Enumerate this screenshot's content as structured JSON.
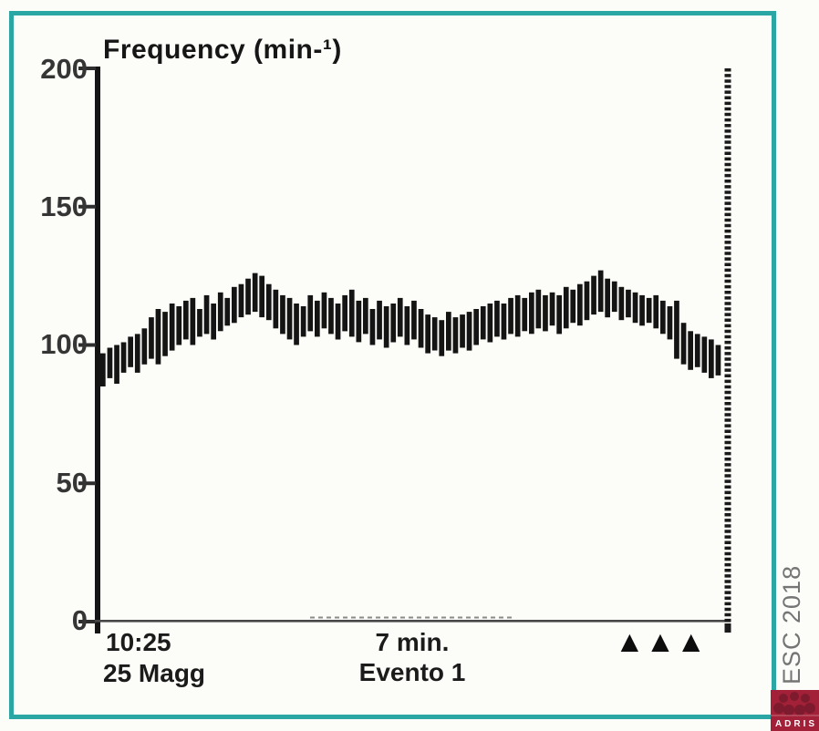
{
  "frame": {
    "border_color": "#2aa7a5",
    "background": "#fcfcf8"
  },
  "chart": {
    "title": "Frequency (min-¹)",
    "y_axis": {
      "ticks": [
        "200",
        "150",
        "100",
        "50",
        "0"
      ]
    },
    "x_axis": {
      "start_time": "10:25",
      "start_date": "25 Magg",
      "duration_label": "7 min.",
      "event_label": "Evento 1"
    },
    "markers": {
      "glyph": "▲",
      "count": 3
    }
  },
  "watermark": "ESC 2018",
  "logo": {
    "text": "ADRIS",
    "bg": "#a22138",
    "accent": "#7e1a2d"
  },
  "chart_data": {
    "type": "range-bar",
    "title": "Frequency (min-¹)",
    "ylabel": "Frequency (min-1)",
    "ylim": [
      0,
      200
    ],
    "y_ticks": [
      0,
      50,
      100,
      150,
      200
    ],
    "x_start": "10:25 25 Magg",
    "x_span_label": "7 min.",
    "event": "Evento 1",
    "event_markers": 3,
    "ink_color": "#141414",
    "axis_color": "#474747",
    "bars_lo_hi": [
      [
        85,
        97
      ],
      [
        88,
        99
      ],
      [
        86,
        100
      ],
      [
        90,
        101
      ],
      [
        92,
        103
      ],
      [
        90,
        104
      ],
      [
        93,
        106
      ],
      [
        95,
        110
      ],
      [
        93,
        113
      ],
      [
        96,
        112
      ],
      [
        98,
        115
      ],
      [
        100,
        114
      ],
      [
        102,
        116
      ],
      [
        100,
        117
      ],
      [
        103,
        113
      ],
      [
        104,
        118
      ],
      [
        102,
        115
      ],
      [
        105,
        119
      ],
      [
        107,
        117
      ],
      [
        108,
        121
      ],
      [
        110,
        122
      ],
      [
        111,
        124
      ],
      [
        112,
        126
      ],
      [
        110,
        125
      ],
      [
        109,
        122
      ],
      [
        106,
        120
      ],
      [
        104,
        118
      ],
      [
        102,
        117
      ],
      [
        100,
        115
      ],
      [
        103,
        114
      ],
      [
        105,
        118
      ],
      [
        103,
        116
      ],
      [
        106,
        119
      ],
      [
        104,
        117
      ],
      [
        102,
        115
      ],
      [
        105,
        118
      ],
      [
        103,
        120
      ],
      [
        101,
        116
      ],
      [
        104,
        117
      ],
      [
        100,
        113
      ],
      [
        102,
        116
      ],
      [
        99,
        114
      ],
      [
        101,
        115
      ],
      [
        103,
        117
      ],
      [
        100,
        114
      ],
      [
        102,
        116
      ],
      [
        99,
        113
      ],
      [
        97,
        111
      ],
      [
        98,
        110
      ],
      [
        96,
        109
      ],
      [
        98,
        112
      ],
      [
        97,
        110
      ],
      [
        99,
        111
      ],
      [
        98,
        112
      ],
      [
        100,
        113
      ],
      [
        102,
        114
      ],
      [
        101,
        115
      ],
      [
        103,
        116
      ],
      [
        102,
        115
      ],
      [
        104,
        117
      ],
      [
        103,
        118
      ],
      [
        105,
        117
      ],
      [
        104,
        119
      ],
      [
        106,
        120
      ],
      [
        105,
        118
      ],
      [
        107,
        119
      ],
      [
        104,
        118
      ],
      [
        106,
        121
      ],
      [
        108,
        120
      ],
      [
        107,
        122
      ],
      [
        109,
        123
      ],
      [
        111,
        125
      ],
      [
        112,
        127
      ],
      [
        110,
        124
      ],
      [
        112,
        123
      ],
      [
        109,
        121
      ],
      [
        110,
        120
      ],
      [
        108,
        119
      ],
      [
        107,
        118
      ],
      [
        108,
        117
      ],
      [
        106,
        118
      ],
      [
        104,
        116
      ],
      [
        102,
        114
      ],
      [
        95,
        116
      ],
      [
        93,
        108
      ],
      [
        91,
        105
      ],
      [
        92,
        104
      ],
      [
        90,
        103
      ],
      [
        88,
        102
      ],
      [
        89,
        100
      ]
    ]
  }
}
